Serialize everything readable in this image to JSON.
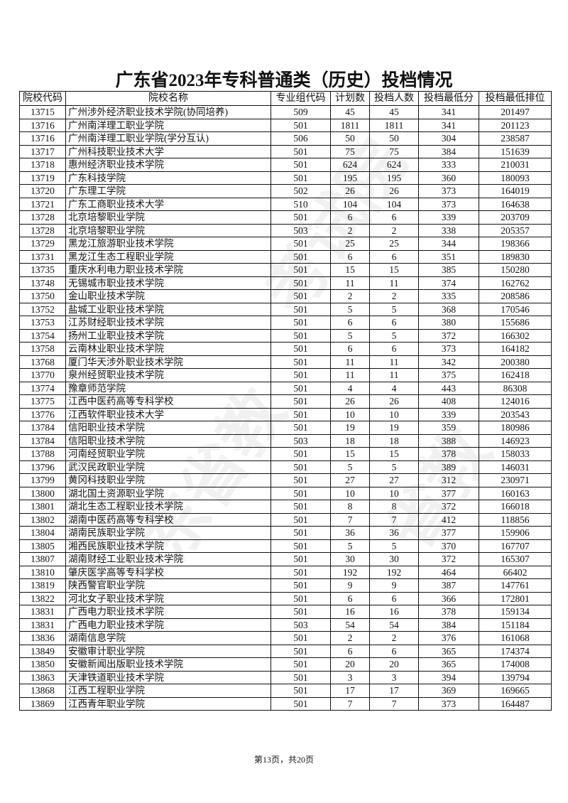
{
  "title": "广东省2023年专科普通类（历史）投档情况",
  "columns": [
    "院校代码",
    "院校名称",
    "专业组代码",
    "计划数",
    "投档人数",
    "投档最低分",
    "投档最低排位"
  ],
  "rows": [
    [
      "13715",
      "广州涉外经济职业技术学院(协同培养)",
      "509",
      "45",
      "45",
      "341",
      "201497"
    ],
    [
      "13716",
      "广州南洋理工职业学院",
      "501",
      "1811",
      "1811",
      "341",
      "201123"
    ],
    [
      "13716",
      "广州南洋理工职业学院(学分互认)",
      "506",
      "50",
      "50",
      "304",
      "238587"
    ],
    [
      "13717",
      "广州科技职业技术大学",
      "501",
      "75",
      "75",
      "384",
      "151639"
    ],
    [
      "13718",
      "惠州经济职业技术学院",
      "501",
      "624",
      "624",
      "333",
      "210031"
    ],
    [
      "13719",
      "广东科技学院",
      "501",
      "195",
      "195",
      "360",
      "180093"
    ],
    [
      "13720",
      "广东理工学院",
      "502",
      "26",
      "26",
      "373",
      "164019"
    ],
    [
      "13721",
      "广东工商职业技术大学",
      "510",
      "104",
      "104",
      "373",
      "164638"
    ],
    [
      "13728",
      "北京培黎职业学院",
      "501",
      "6",
      "6",
      "339",
      "203709"
    ],
    [
      "13728",
      "北京培黎职业学院",
      "503",
      "2",
      "2",
      "338",
      "205357"
    ],
    [
      "13729",
      "黑龙江旅游职业技术学院",
      "501",
      "25",
      "25",
      "344",
      "198366"
    ],
    [
      "13731",
      "黑龙江生态工程职业学院",
      "501",
      "6",
      "6",
      "351",
      "189830"
    ],
    [
      "13735",
      "重庆水利电力职业技术学院",
      "501",
      "15",
      "15",
      "385",
      "150280"
    ],
    [
      "13748",
      "无锡城市职业技术学院",
      "501",
      "11",
      "11",
      "374",
      "162762"
    ],
    [
      "13750",
      "金山职业技术学院",
      "501",
      "2",
      "2",
      "335",
      "208586"
    ],
    [
      "13752",
      "盐城工业职业技术学院",
      "501",
      "5",
      "5",
      "368",
      "170546"
    ],
    [
      "13753",
      "江苏财经职业技术学院",
      "501",
      "6",
      "6",
      "380",
      "155686"
    ],
    [
      "13754",
      "扬州工业职业技术学院",
      "501",
      "5",
      "5",
      "372",
      "166302"
    ],
    [
      "13758",
      "云南林业职业技术学院",
      "501",
      "6",
      "6",
      "373",
      "164182"
    ],
    [
      "13768",
      "厦门华天涉外职业技术学院",
      "501",
      "11",
      "11",
      "342",
      "200380"
    ],
    [
      "13770",
      "泉州经贸职业技术学院",
      "501",
      "11",
      "11",
      "375",
      "162418"
    ],
    [
      "13774",
      "豫章师范学院",
      "501",
      "4",
      "4",
      "443",
      "86308"
    ],
    [
      "13775",
      "江西中医药高等专科学校",
      "501",
      "26",
      "26",
      "408",
      "124016"
    ],
    [
      "13776",
      "江西软件职业技术大学",
      "501",
      "10",
      "10",
      "339",
      "203543"
    ],
    [
      "13784",
      "信阳职业技术学院",
      "501",
      "19",
      "19",
      "359",
      "180986"
    ],
    [
      "13784",
      "信阳职业技术学院",
      "503",
      "18",
      "18",
      "388",
      "146923"
    ],
    [
      "13788",
      "河南经贸职业学院",
      "501",
      "15",
      "15",
      "378",
      "158033"
    ],
    [
      "13796",
      "武汉民政职业学院",
      "501",
      "5",
      "5",
      "389",
      "146031"
    ],
    [
      "13799",
      "黄冈科技职业学院",
      "501",
      "27",
      "27",
      "312",
      "230971"
    ],
    [
      "13800",
      "湖北国土资源职业学院",
      "501",
      "10",
      "10",
      "377",
      "160163"
    ],
    [
      "13801",
      "湖北生态工程职业技术学院",
      "501",
      "8",
      "8",
      "372",
      "166018"
    ],
    [
      "13802",
      "湖南中医药高等专科学校",
      "501",
      "7",
      "7",
      "412",
      "118856"
    ],
    [
      "13804",
      "湖南民族职业学院",
      "501",
      "36",
      "36",
      "377",
      "159906"
    ],
    [
      "13805",
      "湘西民族职业技术学院",
      "501",
      "5",
      "5",
      "370",
      "167707"
    ],
    [
      "13807",
      "湖南财经工业职业技术学院",
      "501",
      "30",
      "30",
      "372",
      "165307"
    ],
    [
      "13810",
      "肇庆医学高等专科学校",
      "501",
      "192",
      "192",
      "464",
      "66402"
    ],
    [
      "13819",
      "陕西警官职业学院",
      "501",
      "9",
      "9",
      "387",
      "147761"
    ],
    [
      "13822",
      "河北女子职业技术学院",
      "501",
      "6",
      "6",
      "366",
      "172801"
    ],
    [
      "13831",
      "广西电力职业技术学院",
      "501",
      "16",
      "16",
      "378",
      "159134"
    ],
    [
      "13831",
      "广西电力职业技术学院",
      "503",
      "54",
      "54",
      "384",
      "151184"
    ],
    [
      "13836",
      "湖南信息学院",
      "501",
      "2",
      "2",
      "376",
      "161068"
    ],
    [
      "13849",
      "安徽审计职业学院",
      "501",
      "6",
      "6",
      "365",
      "174374"
    ],
    [
      "13850",
      "安徽新闻出版职业技术学院",
      "501",
      "20",
      "20",
      "365",
      "174008"
    ],
    [
      "13863",
      "天津铁道职业技术学院",
      "501",
      "3",
      "3",
      "394",
      "139794"
    ],
    [
      "13868",
      "江西工程职业学院",
      "501",
      "17",
      "17",
      "369",
      "169665"
    ],
    [
      "13869",
      "江西青年职业学院",
      "501",
      "7",
      "7",
      "373",
      "164487"
    ]
  ],
  "footer": "第13页，共20页",
  "watermark": "广东省教育考试院"
}
